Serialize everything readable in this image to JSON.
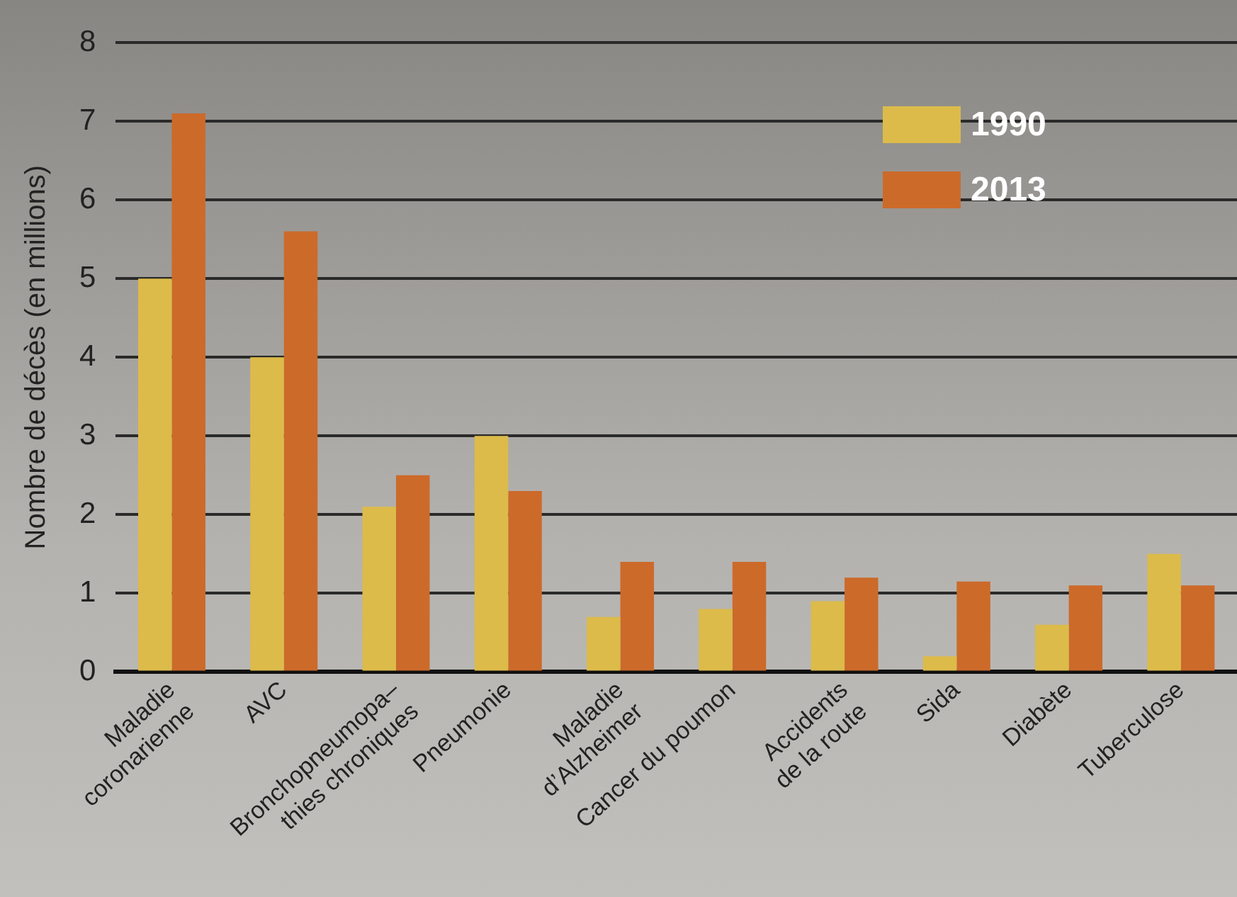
{
  "chart_data": {
    "type": "bar",
    "ylabel": "Nombre de décès (en millions)",
    "categories": [
      "Maladie\ncoronarienne",
      "AVC",
      "Bronchopneumopa–\nthies chroniques",
      "Pneumonie",
      "Maladie\nd’Alzheimer",
      "Cancer du poumon",
      "Accidents\nde la route",
      "Sida",
      "Diabète",
      "Tuberculose"
    ],
    "series": [
      {
        "name": "1990",
        "color": "#dcbb4a",
        "values": [
          5.0,
          4.0,
          2.1,
          3.0,
          0.7,
          0.8,
          0.9,
          0.2,
          0.6,
          1.5
        ]
      },
      {
        "name": "2013",
        "color": "#cc6a2a",
        "values": [
          7.1,
          5.6,
          2.5,
          2.3,
          1.4,
          1.4,
          1.2,
          1.15,
          1.1,
          1.1
        ]
      }
    ],
    "ylim": [
      0,
      8
    ],
    "yticks": [
      0,
      1,
      2,
      3,
      4,
      5,
      6,
      7,
      8
    ],
    "grid": "y",
    "legend": "top right"
  }
}
